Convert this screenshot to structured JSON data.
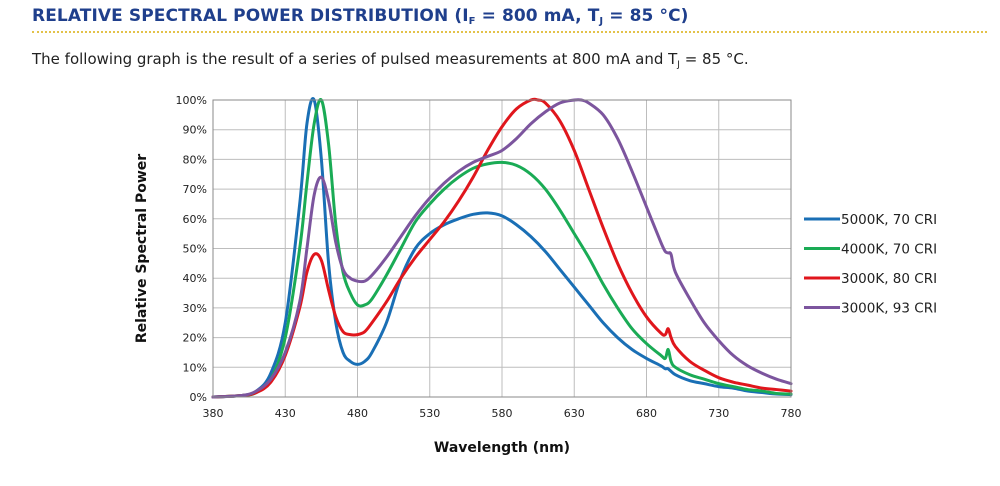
{
  "page": {
    "heading_main": "RELATIVE SPECTRAL POWER DISTRIBUTION (I",
    "heading_sub_f": "F",
    "heading_mid": " = 800 mA, T",
    "heading_sub_j": "J",
    "heading_end": " = 85 °C)",
    "intro_main": "The following graph is the result of a series of pulsed measurements at 800 mA and T",
    "intro_sub": "J",
    "intro_end": " = 85 °C."
  },
  "chart_data": {
    "type": "line",
    "title": "",
    "xlabel": "Wavelength (nm)",
    "ylabel": "Relative Spectral Power",
    "xlim": [
      380,
      780
    ],
    "ylim": [
      0,
      100
    ],
    "x_ticks": [
      "380",
      "430",
      "480",
      "530",
      "580",
      "630",
      "680",
      "730",
      "780"
    ],
    "y_ticks": [
      "0%",
      "10%",
      "20%",
      "30%",
      "40%",
      "50%",
      "60%",
      "70%",
      "80%",
      "90%",
      "100%"
    ],
    "grid": true,
    "legend_position": "right",
    "series": [
      {
        "name": "5000K, 70 CRI",
        "color": "#1a6fb5",
        "x": [
          380,
          400,
          410,
          420,
          430,
          440,
          445,
          450,
          455,
          460,
          465,
          470,
          475,
          480,
          485,
          490,
          500,
          510,
          520,
          530,
          540,
          550,
          560,
          570,
          580,
          590,
          600,
          610,
          620,
          630,
          640,
          650,
          660,
          670,
          680,
          690,
          693,
          695,
          700,
          710,
          720,
          730,
          740,
          750,
          760,
          770,
          780
        ],
        "y": [
          0,
          0.5,
          2,
          8,
          25,
          65,
          92,
          100,
          80,
          45,
          25,
          15,
          12,
          11,
          12,
          15,
          25,
          40,
          50,
          55,
          58,
          60,
          61.5,
          62,
          61,
          58,
          54,
          49,
          43,
          37,
          31,
          25,
          20,
          16,
          13,
          10.5,
          9.5,
          9.5,
          7.5,
          5.5,
          4.5,
          3.5,
          3,
          2,
          1.5,
          1,
          0.8
        ]
      },
      {
        "name": "4000K, 70 CRI",
        "color": "#1aab55",
        "x": [
          380,
          400,
          410,
          420,
          430,
          440,
          445,
          450,
          455,
          460,
          465,
          470,
          475,
          480,
          485,
          490,
          500,
          510,
          520,
          530,
          540,
          550,
          560,
          570,
          580,
          590,
          600,
          610,
          620,
          630,
          640,
          650,
          660,
          670,
          680,
          690,
          693,
          695,
          697,
          700,
          710,
          720,
          730,
          740,
          750,
          760,
          770,
          780
        ],
        "y": [
          0,
          0.5,
          1.5,
          6,
          20,
          50,
          72,
          92,
          100,
          85,
          58,
          42,
          35,
          31,
          31,
          33,
          41,
          50,
          59,
          65,
          70,
          74,
          77,
          78.5,
          79,
          78,
          75,
          70,
          63,
          55,
          47,
          38,
          30,
          23,
          18,
          14,
          13,
          16,
          12,
          10,
          7.5,
          6,
          4.5,
          3.5,
          2.5,
          2,
          1.2,
          1
        ]
      },
      {
        "name": "3000K, 80 CRI",
        "color": "#e0161c",
        "x": [
          380,
          400,
          410,
          420,
          430,
          440,
          445,
          450,
          455,
          460,
          465,
          470,
          475,
          480,
          485,
          490,
          500,
          510,
          520,
          530,
          540,
          550,
          560,
          570,
          580,
          590,
          600,
          605,
          610,
          620,
          630,
          640,
          650,
          660,
          670,
          680,
          690,
          693,
          695,
          697,
          700,
          710,
          720,
          730,
          740,
          750,
          760,
          770,
          780
        ],
        "y": [
          0,
          0.5,
          1.5,
          5,
          14,
          30,
          42,
          48,
          46,
          36,
          27,
          22,
          21,
          21,
          22,
          25,
          32,
          40,
          47,
          53,
          59,
          66,
          74,
          83,
          91,
          97,
          100,
          100,
          99,
          93,
          83,
          70,
          57,
          45,
          35,
          27,
          21.5,
          21,
          23,
          20,
          17,
          12,
          9,
          6.5,
          5,
          4,
          3,
          2.5,
          2
        ]
      },
      {
        "name": "3000K, 93 CRI",
        "color": "#7c559e",
        "x": [
          380,
          400,
          410,
          420,
          430,
          440,
          445,
          450,
          455,
          460,
          465,
          470,
          475,
          480,
          485,
          490,
          500,
          510,
          520,
          530,
          540,
          550,
          560,
          570,
          580,
          590,
          600,
          610,
          620,
          630,
          635,
          640,
          650,
          660,
          670,
          680,
          690,
          693,
          695,
          697,
          700,
          710,
          720,
          730,
          740,
          750,
          760,
          770,
          780
        ],
        "y": [
          0,
          0.5,
          2,
          6,
          15,
          32,
          50,
          68,
          74,
          66,
          52,
          43,
          40,
          39,
          39,
          41,
          47,
          54,
          61,
          67,
          72,
          76,
          79,
          81,
          83,
          87,
          92,
          96,
          99,
          100,
          100,
          99,
          95,
          87,
          76,
          64,
          52,
          49,
          48.5,
          48,
          42,
          33,
          25,
          19,
          14,
          10.5,
          8,
          6,
          4.5
        ]
      }
    ]
  }
}
